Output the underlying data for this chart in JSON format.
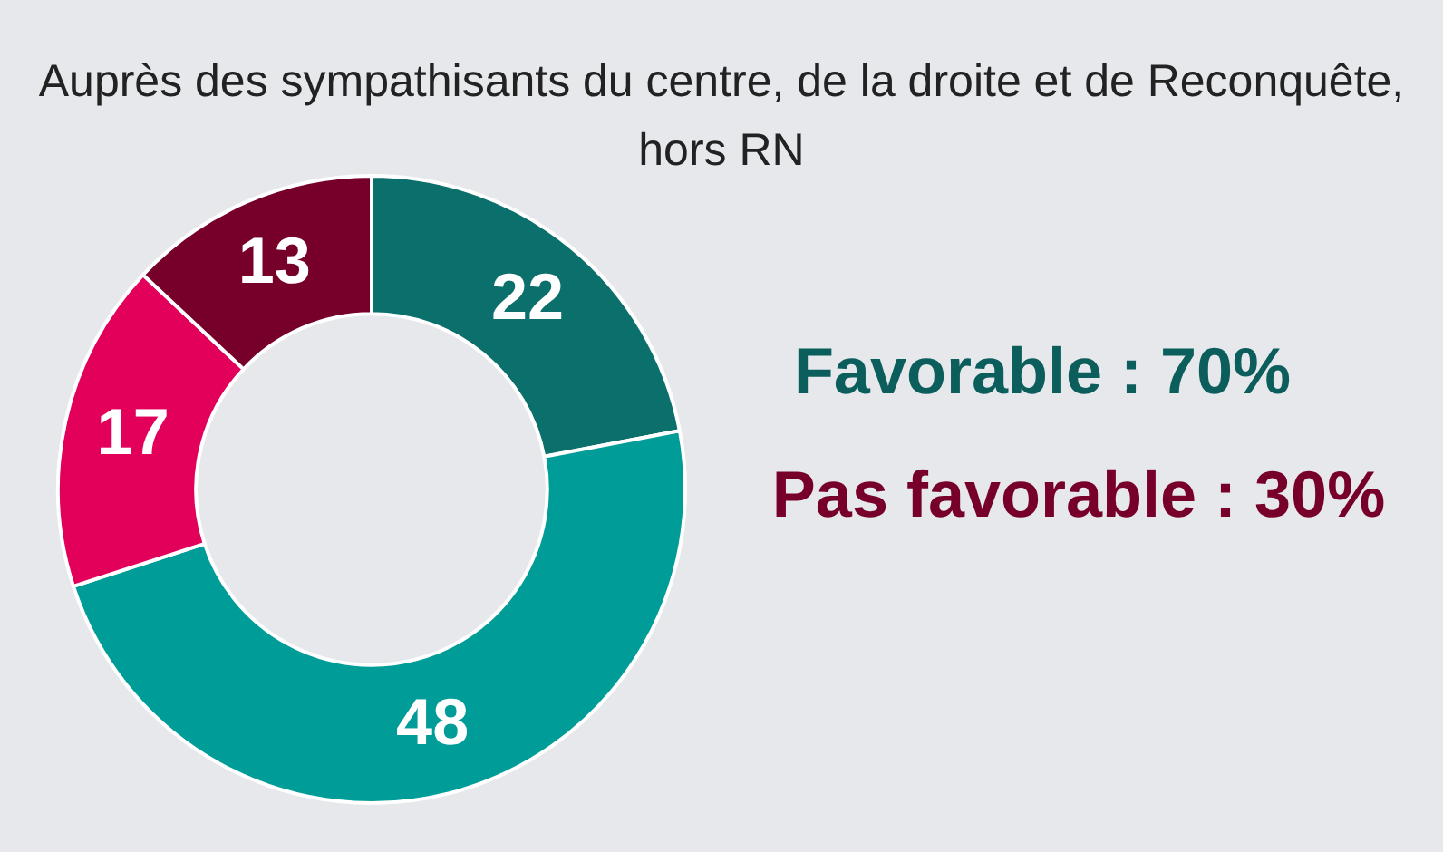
{
  "chart_data": {
    "type": "donut",
    "title": "Auprès des sympathisants du centre, de la droite et de Reconquête, hors RN",
    "categories": [
      null,
      null,
      null,
      null
    ],
    "values": [
      22,
      48,
      17,
      13
    ],
    "colors": [
      "#0b6f6b",
      "#009d98",
      "#e2005a",
      "#760029"
    ],
    "data_labels": true,
    "annotations": [
      "Favorable : 70%",
      "Pas favorable : 30%"
    ]
  }
}
